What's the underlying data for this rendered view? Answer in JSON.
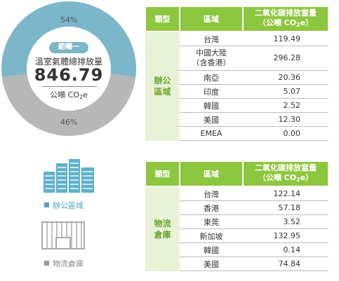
{
  "donut": {
    "colors": {
      "office": "#7cb6c9",
      "warehouse": "#b7b7b7"
    },
    "top_percent": "54%",
    "bottom_percent": "46%",
    "office_fraction": 0.54,
    "scope_badge": "範疇一",
    "total_label": "溫室氣體總排放量",
    "total_value": "846.79",
    "unit_prefix": "公噸 CO",
    "unit_sub": "2",
    "unit_suffix": "e"
  },
  "legend": {
    "office_label": "辦公區域",
    "warehouse_label": "物流倉庫",
    "office_icon": "office-building-icon",
    "warehouse_icon": "warehouse-icon",
    "office_color": "#4ba3bf",
    "warehouse_color": "#999999"
  },
  "office_table": {
    "headers": {
      "type": "類型",
      "region": "區域",
      "emission_line1": "二氧化碳排放當量",
      "emission_line2_prefix": "（公噸 CO",
      "emission_line2_sub": "2",
      "emission_line2_suffix": "e）"
    },
    "group_label_line1": "辦公",
    "group_label_line2": "區域",
    "rows": [
      {
        "region": "台灣",
        "value": "119.49"
      },
      {
        "region": "中國大陸",
        "region_line2": "（含香港）",
        "value": "296.28"
      },
      {
        "region": "南亞",
        "value": "20.36"
      },
      {
        "region": "印度",
        "value": "5.07"
      },
      {
        "region": "韓國",
        "value": "2.52"
      },
      {
        "region": "美國",
        "value": "12.30"
      },
      {
        "region": "EMEA",
        "value": "0.00"
      }
    ]
  },
  "warehouse_table": {
    "headers": {
      "type": "類型",
      "region": "區域",
      "emission_line1": "二氧化碳排放當量",
      "emission_line2_prefix": "（公噸 CO",
      "emission_line2_sub": "2",
      "emission_line2_suffix": "e）"
    },
    "group_label_line1": "物流",
    "group_label_line2": "倉庫",
    "rows": [
      {
        "region": "台灣",
        "value": "122.14"
      },
      {
        "region": "香港",
        "value": "57.18"
      },
      {
        "region": "東莞",
        "value": "3.52"
      },
      {
        "region": "新加坡",
        "value": "132.95"
      },
      {
        "region": "韓國",
        "value": "0.14"
      },
      {
        "region": "美國",
        "value": "74.84"
      }
    ]
  }
}
